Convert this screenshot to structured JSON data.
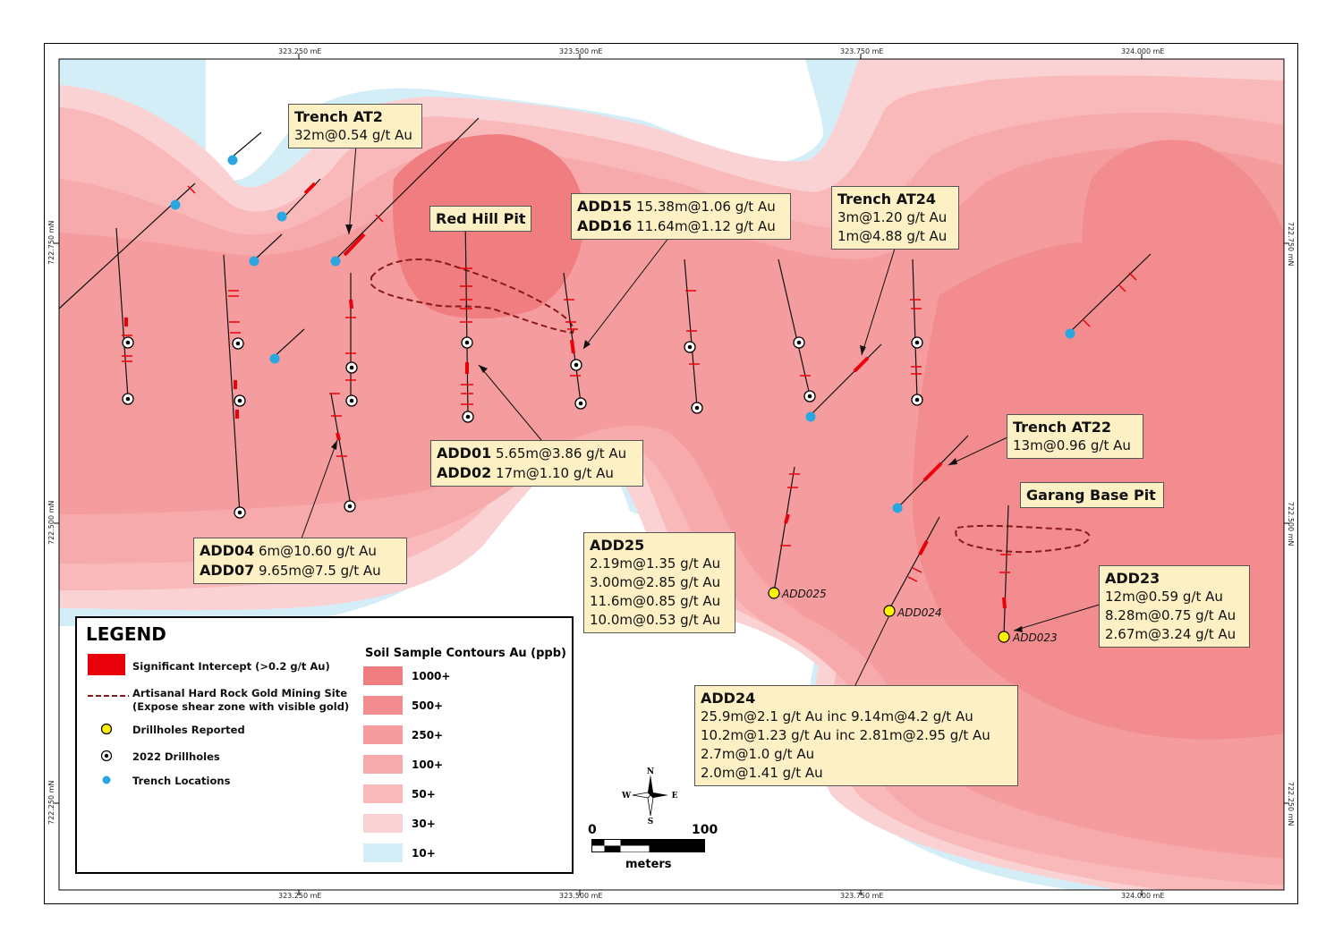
{
  "grid": {
    "top_labels": [
      "323.250 mE",
      "323.500 mE",
      "323.750 mE",
      "324.000 mE"
    ],
    "bottom_labels": [
      "323.250 mE",
      "323.500 mE",
      "323.750 mE",
      "324.000 mE"
    ],
    "left_labels": [
      "722.750 mN",
      "722.500 mN",
      "722.250 mN"
    ],
    "right_labels": [
      "722.750 mN",
      "722.500 mN",
      "722.250 mN"
    ]
  },
  "callouts": {
    "at2": {
      "title": "Trench AT2",
      "lines": [
        "32m@0.54 g/t Au"
      ]
    },
    "redhill": {
      "title": "Red Hill Pit"
    },
    "add15": {
      "id": "ADD15",
      "val": "15.38m@1.06 g/t Au"
    },
    "add16": {
      "id": "ADD16",
      "val": "11.64m@1.12 g/t Au"
    },
    "at24": {
      "title": "Trench AT24",
      "lines": [
        "3m@1.20 g/t Au",
        "1m@4.88 g/t Au"
      ]
    },
    "at22": {
      "title": "Trench AT22",
      "lines": [
        "13m@0.96 g/t Au"
      ]
    },
    "garang": {
      "title": "Garang Base Pit"
    },
    "add01": {
      "id": "ADD01",
      "val": "5.65m@3.86 g/t Au"
    },
    "add02": {
      "id": "ADD02",
      "val": "17m@1.10 g/t Au"
    },
    "add04": {
      "id": "ADD04",
      "val": "6m@10.60 g/t Au"
    },
    "add07": {
      "id": "ADD07",
      "val": "9.65m@7.5 g/t Au"
    },
    "add25": {
      "title": "ADD25",
      "lines": [
        "2.19m@1.35 g/t Au",
        "3.00m@2.85 g/t Au",
        "11.6m@0.85 g/t Au",
        "10.0m@0.53 g/t Au"
      ]
    },
    "add23": {
      "title": "ADD23",
      "lines": [
        "12m@0.59 g/t Au",
        "8.28m@0.75 g/t Au",
        "2.67m@3.24 g/t Au"
      ]
    },
    "add24": {
      "title": "ADD24",
      "lines": [
        "25.9m@2.1 g/t Au inc 9.14m@4.2 g/t Au",
        "10.2m@1.23 g/t Au inc 2.81m@2.95 g/t Au",
        "2.7m@1.0 g/t Au",
        "2.0m@1.41 g/t Au"
      ]
    }
  },
  "drill_labels": {
    "add025": "ADD025",
    "add024": "ADD024",
    "add023": "ADD023"
  },
  "legend": {
    "title": "LEGEND",
    "items": [
      "Significant Intercept (>0.2 g/t Au)",
      "Artisanal Hard Rock Gold Mining Site",
      "(Expose shear zone with visible gold)",
      "Drillholes Reported",
      "2022 Drillholes",
      "Trench Locations"
    ],
    "contour_title": "Soil Sample Contours Au (ppb)",
    "contours": [
      {
        "label": "1000+",
        "color": "#f07d80"
      },
      {
        "label": "500+",
        "color": "#f28c8e"
      },
      {
        "label": "250+",
        "color": "#f59c9e"
      },
      {
        "label": "100+",
        "color": "#f7aaac"
      },
      {
        "label": "50+",
        "color": "#f9b9ba"
      },
      {
        "label": "30+",
        "color": "#fbd2d3"
      },
      {
        "label": "10+",
        "color": "#d4eef8"
      }
    ]
  },
  "scale": {
    "zero": "0",
    "max": "100",
    "unit": "meters"
  },
  "north": {
    "n": "N",
    "s": "S",
    "e": "E",
    "w": "W"
  },
  "colors": {
    "intercept": "#e8000b",
    "reported": "#fff200",
    "trench": "#2aa6e0",
    "pit": "#8b1a1a"
  }
}
